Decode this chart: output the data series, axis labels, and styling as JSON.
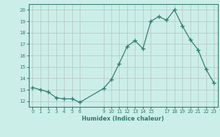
{
  "x": [
    0,
    1,
    2,
    3,
    4,
    5,
    6,
    9,
    10,
    11,
    12,
    13,
    14,
    15,
    16,
    17,
    18,
    19,
    20,
    21,
    22,
    23
  ],
  "y": [
    13.2,
    13.0,
    12.8,
    12.3,
    12.2,
    12.2,
    11.9,
    13.1,
    13.9,
    15.3,
    16.8,
    17.3,
    16.6,
    19.0,
    19.4,
    19.1,
    20.0,
    18.6,
    17.4,
    16.5,
    14.8,
    13.6
  ],
  "line_color": "#2d7b6e",
  "marker": "+",
  "marker_size": 4,
  "bg_color": "#cceee8",
  "grid_color": "#b8c8c4",
  "axis_color": "#2d7b6e",
  "xlabel": "Humidex (Indice chaleur)",
  "ylim": [
    11.5,
    20.5
  ],
  "xlim": [
    -0.5,
    23.5
  ],
  "yticks": [
    12,
    13,
    14,
    15,
    16,
    17,
    18,
    19,
    20
  ],
  "xticks": [
    0,
    1,
    2,
    3,
    4,
    5,
    6,
    9,
    10,
    11,
    12,
    13,
    14,
    15,
    17,
    18,
    19,
    20,
    21,
    22,
    23
  ],
  "title": ""
}
